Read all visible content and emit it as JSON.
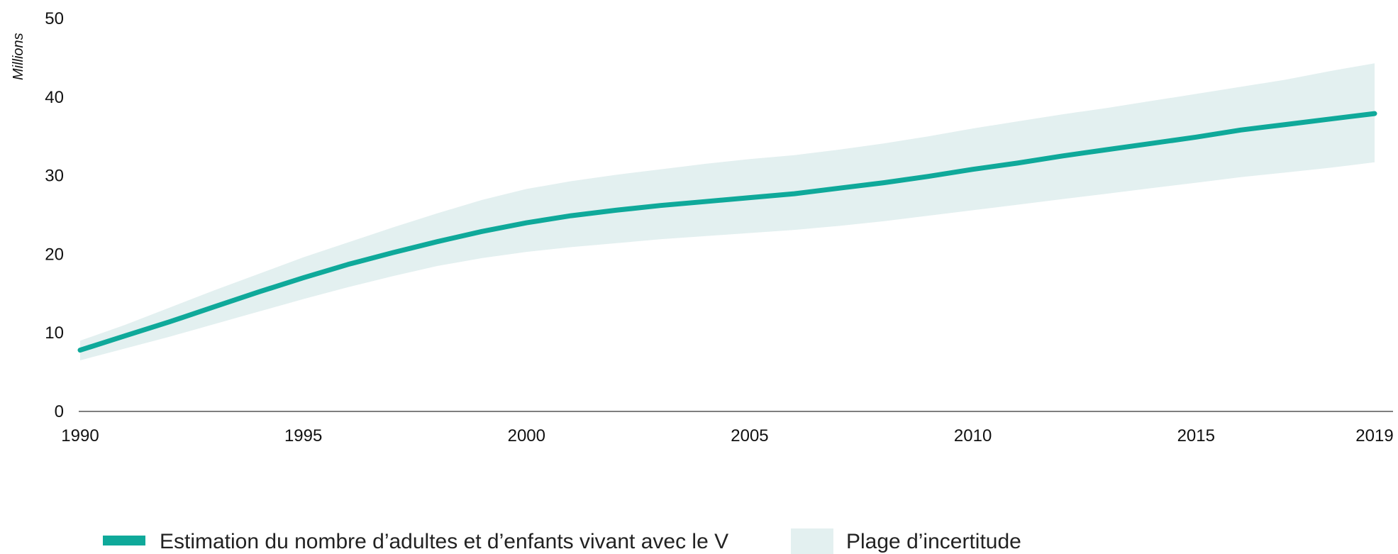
{
  "chart_data": {
    "type": "line",
    "title": "",
    "xlabel": "",
    "ylabel": "Millions",
    "xlim": [
      1990,
      2019
    ],
    "ylim": [
      0,
      50
    ],
    "x_ticks": [
      1990,
      1995,
      2000,
      2005,
      2010,
      2015,
      2019
    ],
    "y_ticks": [
      0,
      10,
      20,
      30,
      40,
      50
    ],
    "grid": false,
    "legend_position": "bottom",
    "colors": {
      "estimate": "#0FA99A",
      "range": "#E3F0F0",
      "axis": "#555555"
    },
    "x": [
      1990,
      1991,
      1992,
      1993,
      1994,
      1995,
      1996,
      1997,
      1998,
      1999,
      2000,
      2001,
      2002,
      2003,
      2004,
      2005,
      2006,
      2007,
      2008,
      2009,
      2010,
      2011,
      2012,
      2013,
      2014,
      2015,
      2016,
      2017,
      2018,
      2019
    ],
    "series": [
      {
        "name": "Estimation du nombre d’adultes et d’enfants vivant avec le V",
        "kind": "line",
        "values": [
          7.8,
          9.6,
          11.4,
          13.3,
          15.2,
          17.0,
          18.7,
          20.2,
          21.6,
          22.9,
          24.0,
          24.9,
          25.6,
          26.2,
          26.7,
          27.2,
          27.7,
          28.4,
          29.1,
          29.9,
          30.8,
          31.6,
          32.5,
          33.3,
          34.1,
          34.9,
          35.8,
          36.5,
          37.2,
          37.9
        ]
      },
      {
        "name": "Plage d’incertitude",
        "kind": "band",
        "lower": [
          6.5,
          8.0,
          9.5,
          11.1,
          12.7,
          14.3,
          15.8,
          17.2,
          18.5,
          19.5,
          20.3,
          20.9,
          21.4,
          21.9,
          22.3,
          22.7,
          23.1,
          23.6,
          24.2,
          24.9,
          25.6,
          26.3,
          27.0,
          27.7,
          28.4,
          29.1,
          29.8,
          30.4,
          31.0,
          31.7
        ],
        "upper": [
          9.0,
          11.0,
          13.2,
          15.4,
          17.5,
          19.6,
          21.5,
          23.4,
          25.2,
          26.9,
          28.3,
          29.3,
          30.1,
          30.8,
          31.5,
          32.1,
          32.6,
          33.3,
          34.1,
          35.0,
          36.0,
          36.9,
          37.8,
          38.6,
          39.5,
          40.4,
          41.3,
          42.2,
          43.3,
          44.3
        ]
      }
    ]
  }
}
